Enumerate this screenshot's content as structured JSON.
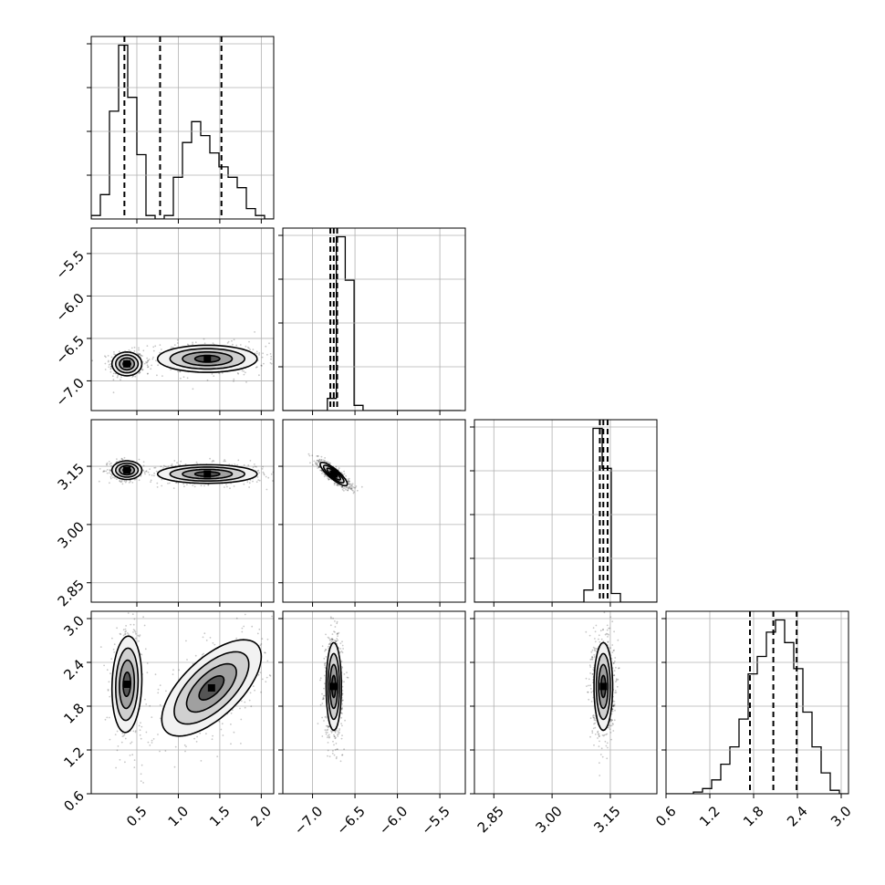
{
  "chart_data": {
    "type": "corner",
    "grid": true,
    "colors": {
      "ink": "#000000",
      "grid": "#b0b0b0",
      "background": "#ffffff"
    },
    "params": [
      {
        "lim": [
          -0.05,
          2.15
        ],
        "ticks": [
          0.5,
          1.0,
          1.5,
          2.0
        ],
        "tick_labels": [
          "0.5",
          "1.0",
          "1.5",
          "2.0"
        ],
        "quantiles": [
          0.35,
          0.78,
          1.52
        ]
      },
      {
        "lim": [
          -7.35,
          -5.2
        ],
        "ticks": [
          -7.0,
          -6.5,
          -6.0,
          -5.5
        ],
        "tick_labels": [
          "−7.0",
          "−6.5",
          "−6.0",
          "−5.5"
        ],
        "quantiles": [
          -6.79,
          -6.75,
          -6.71
        ]
      },
      {
        "lim": [
          2.8,
          3.27
        ],
        "ticks": [
          2.85,
          3.0,
          3.15
        ],
        "tick_labels": [
          "2.85",
          "3.00",
          "3.15"
        ],
        "quantiles": [
          3.123,
          3.132,
          3.143
        ]
      },
      {
        "lim": [
          0.6,
          3.1
        ],
        "ticks": [
          0.6,
          1.2,
          1.8,
          2.4,
          3.0
        ],
        "tick_labels": [
          "0.6",
          "1.2",
          "1.8",
          "2.4",
          "3.0"
        ],
        "quantiles": [
          1.75,
          2.07,
          2.39
        ]
      }
    ],
    "histograms": [
      {
        "param": 0,
        "edges": [
          -0.05,
          0.06,
          0.17,
          0.28,
          0.39,
          0.5,
          0.61,
          0.72,
          0.83,
          0.94,
          1.05,
          1.16,
          1.27,
          1.38,
          1.49,
          1.6,
          1.71,
          1.82,
          1.93,
          2.04,
          2.15
        ],
        "counts": [
          2,
          14,
          62,
          100,
          70,
          37,
          2,
          0,
          2,
          24,
          44,
          56,
          48,
          38,
          30,
          24,
          18,
          6,
          2,
          0
        ]
      },
      {
        "param": 1,
        "edges": [
          -7.35,
          -7.245,
          -7.14,
          -7.035,
          -6.93,
          -6.825,
          -6.72,
          -6.615,
          -6.51,
          -6.405,
          -6.3,
          -6.195,
          -6.09,
          -5.985,
          -5.88,
          -5.775,
          -5.67,
          -5.565,
          -5.46,
          -5.355,
          -5.25
        ],
        "counts": [
          0,
          0,
          0,
          0,
          0,
          7,
          100,
          75,
          3,
          0,
          0,
          0,
          0,
          0,
          0,
          0,
          0,
          0,
          0,
          0
        ]
      },
      {
        "param": 2,
        "edges": [
          2.8,
          2.8235,
          2.847,
          2.8705,
          2.894,
          2.9175,
          2.941,
          2.9645,
          2.988,
          3.0115,
          3.035,
          3.0585,
          3.082,
          3.1055,
          3.129,
          3.1525,
          3.176,
          3.1995,
          3.223,
          3.2465,
          3.27
        ],
        "counts": [
          0,
          0,
          0,
          0,
          0,
          0,
          0,
          0,
          0,
          0,
          0,
          0,
          7,
          100,
          77,
          5,
          0,
          0,
          0,
          0
        ]
      },
      {
        "param": 3,
        "edges": [
          0.6,
          0.725,
          0.85,
          0.975,
          1.1,
          1.225,
          1.35,
          1.475,
          1.6,
          1.725,
          1.85,
          1.975,
          2.1,
          2.225,
          2.35,
          2.475,
          2.6,
          2.725,
          2.85,
          2.975,
          3.1
        ],
        "counts": [
          0,
          0,
          0,
          1,
          3,
          8,
          17,
          27,
          43,
          69,
          79,
          93,
          100,
          87,
          72,
          47,
          27,
          12,
          2,
          0
        ]
      }
    ],
    "blobs_2d": [
      {
        "x_param": 0,
        "y_param": 1,
        "cx": 0.38,
        "cy": -6.8,
        "sx": 0.09,
        "sy": 0.07,
        "rho": 0.0,
        "weight": 0.42
      },
      {
        "x_param": 0,
        "y_param": 1,
        "cx": 1.35,
        "cy": -6.74,
        "sx": 0.3,
        "sy": 0.08,
        "rho": 0.0,
        "weight": 0.58
      },
      {
        "x_param": 0,
        "y_param": 2,
        "cx": 0.38,
        "cy": 3.14,
        "sx": 0.09,
        "sy": 0.012,
        "rho": 0.0,
        "weight": 0.42
      },
      {
        "x_param": 0,
        "y_param": 2,
        "cx": 1.35,
        "cy": 3.13,
        "sx": 0.3,
        "sy": 0.012,
        "rho": 0.0,
        "weight": 0.58
      },
      {
        "x_param": 0,
        "y_param": 3,
        "cx": 0.38,
        "cy": 2.1,
        "sx": 0.09,
        "sy": 0.33,
        "rho": 0.1,
        "weight": 0.42
      },
      {
        "x_param": 0,
        "y_param": 3,
        "cx": 1.4,
        "cy": 2.05,
        "sx": 0.3,
        "sy": 0.33,
        "rho": 0.65,
        "weight": 0.58
      },
      {
        "x_param": 1,
        "y_param": 2,
        "cx": -6.75,
        "cy": 3.13,
        "sx": 0.08,
        "sy": 0.015,
        "rho": -0.85,
        "weight": 1.0
      },
      {
        "x_param": 1,
        "y_param": 3,
        "cx": -6.75,
        "cy": 2.07,
        "sx": 0.045,
        "sy": 0.3,
        "rho": 0.0,
        "weight": 1.0
      },
      {
        "x_param": 2,
        "y_param": 3,
        "cx": 3.132,
        "cy": 2.07,
        "sx": 0.012,
        "sy": 0.3,
        "rho": 0.0,
        "weight": 1.0
      }
    ]
  }
}
